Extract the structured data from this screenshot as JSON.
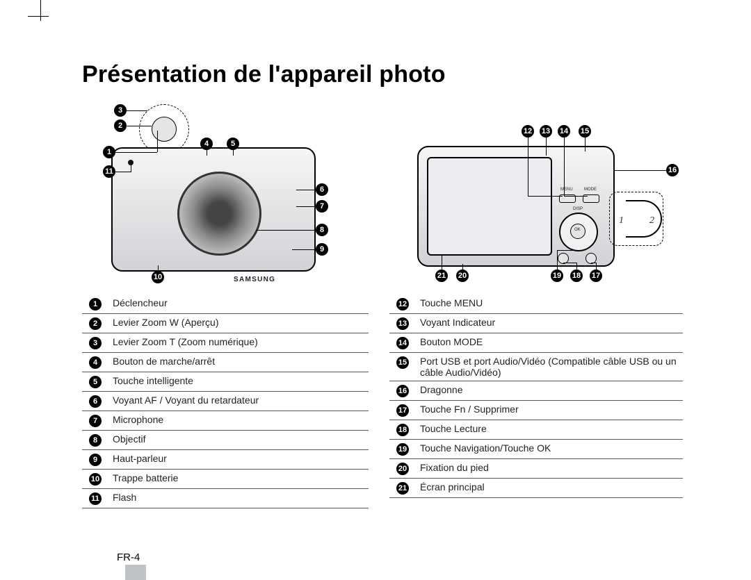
{
  "title": "Présentation de l'appareil photo",
  "page_number": "FR-4",
  "callouts_left": [
    "3",
    "2",
    "1",
    "11",
    "4",
    "5",
    "6",
    "7",
    "8",
    "9",
    "10"
  ],
  "callouts_right_top": [
    "12",
    "13",
    "14",
    "15"
  ],
  "callouts_right_side": [
    "16"
  ],
  "callouts_right_bottom": [
    "21",
    "20",
    "19",
    "18",
    "17"
  ],
  "strap_numbers": [
    "1",
    "2"
  ],
  "brand": "SAMSUNG",
  "back_labels": {
    "menu": "MENU",
    "mode": "MODE",
    "disp": "DISP",
    "ok": "OK"
  },
  "legend_left": [
    {
      "n": "1",
      "t": "Déclencheur"
    },
    {
      "n": "2",
      "t": "Levier Zoom W (Aperçu)"
    },
    {
      "n": "3",
      "t": "Levier Zoom T (Zoom numérique)"
    },
    {
      "n": "4",
      "t": "Bouton de marche/arrêt"
    },
    {
      "n": "5",
      "t": "Touche intelligente"
    },
    {
      "n": "6",
      "t": "Voyant AF / Voyant du retardateur"
    },
    {
      "n": "7",
      "t": "Microphone"
    },
    {
      "n": "8",
      "t": "Objectif"
    },
    {
      "n": "9",
      "t": "Haut-parleur"
    },
    {
      "n": "10",
      "t": "Trappe batterie"
    },
    {
      "n": "11",
      "t": "Flash"
    }
  ],
  "legend_right": [
    {
      "n": "12",
      "t": "Touche MENU"
    },
    {
      "n": "13",
      "t": "Voyant Indicateur"
    },
    {
      "n": "14",
      "t": "Bouton MODE"
    },
    {
      "n": "15",
      "t": "Port USB et port Audio/Vidéo (Compatible câble USB ou un câble Audio/Vidéo)"
    },
    {
      "n": "16",
      "t": "Dragonne"
    },
    {
      "n": "17",
      "t": "Touche Fn / Supprimer"
    },
    {
      "n": "18",
      "t": "Touche Lecture"
    },
    {
      "n": "19",
      "t": "Touche Navigation/Touche OK"
    },
    {
      "n": "20",
      "t": "Fixation du pied"
    },
    {
      "n": "21",
      "t": "Écran principal"
    }
  ],
  "style": {
    "title_fontsize": 34,
    "legend_fontsize": 14,
    "row_border_color": "#55565a",
    "callout_bg": "#000000",
    "callout_fg": "#ffffff",
    "page_bg": "#ffffff"
  }
}
